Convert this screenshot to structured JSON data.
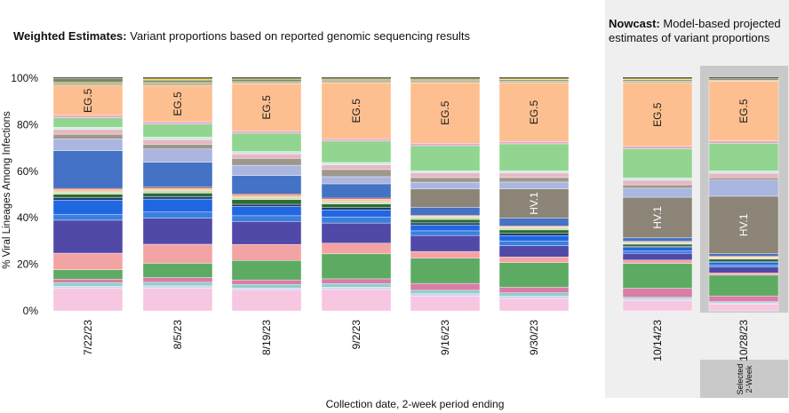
{
  "weighted_title": {
    "bold": "Weighted Estimates:",
    "rest": " Variant proportions based on reported genomic sequencing results"
  },
  "nowcast_title": {
    "bold": "Nowcast:",
    "rest": " Model-based projected estimates of variant proportions"
  },
  "selected_label": "Selected\n2-Week",
  "colors": {
    "panel_bg": "#efefef",
    "selected_bg": "#c9c9c9"
  },
  "chart_data": {
    "type": "bar",
    "stacked": true,
    "xlabel": "Collection date, 2-week period ending",
    "ylabel": "% Viral Lineages Among Infections",
    "ylim": [
      0,
      100
    ],
    "yticks": [
      "0%",
      "20%",
      "40%",
      "60%",
      "80%",
      "100%"
    ],
    "categories": [
      "7/22/23",
      "8/5/23",
      "8/19/23",
      "9/2/23",
      "9/16/23",
      "9/30/23",
      "10/14/23",
      "10/28/23"
    ],
    "nowcast_categories": [
      "10/14/23",
      "10/28/23"
    ],
    "selected_category": "10/28/23",
    "series": [
      {
        "name": "pink-light",
        "color": "#f7c6e0",
        "values": [
          9.5,
          9.5,
          9,
          9,
          6.5,
          5.5,
          4.5,
          3
        ]
      },
      {
        "name": "lavender",
        "color": "#d0d4f2",
        "values": [
          1,
          1,
          1,
          1,
          1,
          1,
          1,
          0.5
        ]
      },
      {
        "name": "teal",
        "color": "#8fcfc8",
        "values": [
          1.5,
          1.5,
          1.5,
          1.5,
          1.5,
          1.5,
          0.5,
          0.5
        ]
      },
      {
        "name": "mauve",
        "color": "#d97ca8",
        "values": [
          1.5,
          2,
          2,
          2,
          3,
          2.5,
          4,
          2.5
        ]
      },
      {
        "name": "green",
        "color": "#5dab63",
        "values": [
          4,
          6,
          8.5,
          10.5,
          11,
          11,
          11,
          9
        ]
      },
      {
        "name": "salmon",
        "color": "#f4a3a5",
        "values": [
          7,
          8,
          7,
          4.5,
          3,
          2.5,
          1.5,
          1
        ]
      },
      {
        "name": "indigo",
        "color": "#5149a8",
        "values": [
          14,
          11,
          10,
          8.5,
          7,
          5,
          3,
          2.5
        ]
      },
      {
        "name": "blue-mid",
        "color": "#3a7ee0",
        "values": [
          2.5,
          2.5,
          2.5,
          2.5,
          2,
          2,
          1,
          1
        ]
      },
      {
        "name": "blue",
        "color": "#2167e2",
        "values": [
          6,
          5.5,
          4,
          3,
          2.5,
          2.5,
          1.5,
          1
        ]
      },
      {
        "name": "navy",
        "color": "#1c3e73",
        "values": [
          1,
          1,
          1,
          1,
          1,
          1,
          0.5,
          0.5
        ]
      },
      {
        "name": "dark-green",
        "color": "#2e6b34",
        "values": [
          1.5,
          1.5,
          2,
          1.5,
          1.5,
          1.5,
          1,
          1
        ]
      },
      {
        "name": "pale-green",
        "color": "#c6e0b4",
        "values": [
          1,
          1,
          1,
          1,
          1,
          1,
          0.5,
          0.5
        ]
      },
      {
        "name": "orange-pale",
        "color": "#f6c8a4",
        "values": [
          1,
          1,
          1,
          1,
          0.5,
          0.5,
          0.5,
          0.5
        ]
      },
      {
        "name": "red-thin",
        "color": "#c0392b",
        "values": [
          0.5,
          0.5,
          0.5,
          0.5,
          0.3,
          0.3,
          0.3,
          0.3
        ]
      },
      {
        "name": "steel-blue",
        "color": "#4472c4",
        "values": [
          16,
          10.5,
          8,
          6,
          3.5,
          3.5,
          1.5,
          1
        ]
      },
      {
        "name": "taupe",
        "color": "#8c8477",
        "values": [
          0,
          0,
          0,
          0,
          8,
          13,
          18,
          25
        ]
      },
      {
        "name": "periwinkle",
        "color": "#aab6e0",
        "values": [
          5,
          5.5,
          4.5,
          3,
          3,
          3,
          4,
          7
        ]
      },
      {
        "name": "grey-brown",
        "color": "#9e978c",
        "values": [
          2,
          2,
          3,
          3,
          2,
          2,
          1.5,
          1
        ]
      },
      {
        "name": "rose-light",
        "color": "#e9b7c3",
        "values": [
          2,
          2,
          2,
          2,
          2,
          2,
          2,
          2
        ]
      },
      {
        "name": "mint",
        "color": "#c8ece4",
        "values": [
          1,
          1,
          1,
          1,
          1,
          1,
          1,
          1
        ]
      },
      {
        "name": "light-green",
        "color": "#92d590",
        "values": [
          4,
          5.5,
          8,
          9,
          11,
          12,
          13,
          12
        ]
      },
      {
        "name": "pink-mid",
        "color": "#e3a6c8",
        "values": [
          1,
          1,
          1,
          1,
          1,
          1,
          1,
          1
        ]
      },
      {
        "name": "EG.5",
        "color": "#fdbf8f",
        "values": [
          12.5,
          15,
          20.5,
          23.5,
          26.5,
          26,
          28,
          26
        ]
      },
      {
        "name": "tan",
        "color": "#c9b896",
        "values": [
          1.5,
          1.5,
          1,
          1,
          1,
          1,
          1,
          0.5
        ]
      },
      {
        "name": "olive",
        "color": "#7a8a5a",
        "values": [
          1.5,
          1,
          1,
          0.5,
          0.5,
          0.5,
          0.5,
          0.5
        ]
      },
      {
        "name": "yellow",
        "color": "#f0d75a",
        "values": [
          0.3,
          0.8,
          0.5,
          0.5,
          0.5,
          0.7,
          0.7,
          0.3
        ]
      }
    ],
    "annotations": [
      {
        "category": "7/22/23",
        "series": "EG.5",
        "text": "EG.5"
      },
      {
        "category": "8/5/23",
        "series": "EG.5",
        "text": "EG.5"
      },
      {
        "category": "8/19/23",
        "series": "EG.5",
        "text": "EG.5"
      },
      {
        "category": "9/2/23",
        "series": "EG.5",
        "text": "EG.5"
      },
      {
        "category": "9/16/23",
        "series": "EG.5",
        "text": "EG.5"
      },
      {
        "category": "9/30/23",
        "series": "EG.5",
        "text": "EG.5"
      },
      {
        "category": "10/14/23",
        "series": "EG.5",
        "text": "EG.5"
      },
      {
        "category": "10/28/23",
        "series": "EG.5",
        "text": "EG.5"
      },
      {
        "category": "9/30/23",
        "series": "taupe",
        "text": "HV.1"
      },
      {
        "category": "10/14/23",
        "series": "taupe",
        "text": "HV.1"
      },
      {
        "category": "10/28/23",
        "series": "taupe",
        "text": "HV.1"
      }
    ]
  }
}
